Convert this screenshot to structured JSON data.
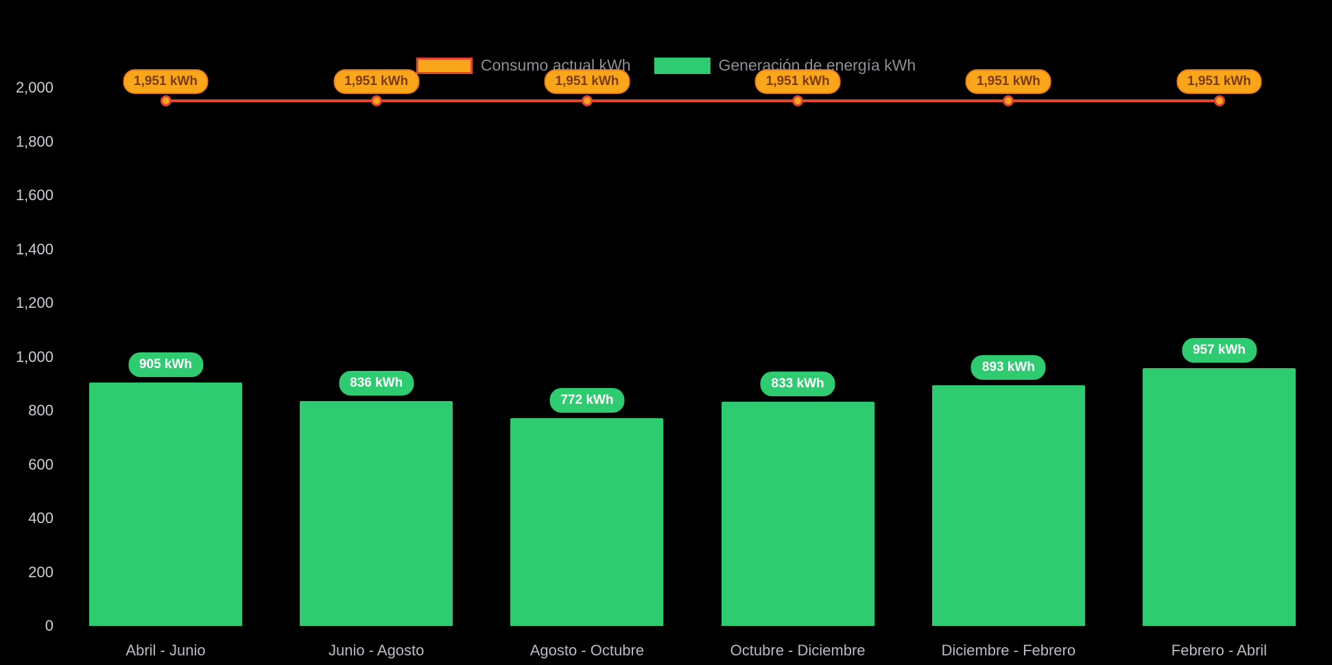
{
  "chart_data": {
    "type": "combo",
    "categories": [
      "Abril - Junio",
      "Junio - Agosto",
      "Agosto - Octubre",
      "Octubre - Diciembre",
      "Diciembre - Febrero",
      "Febrero - Abril"
    ],
    "series": [
      {
        "name": "Consumo actual kWh",
        "type": "line",
        "values": [
          1951,
          1951,
          1951,
          1951,
          1951,
          1951
        ],
        "labels": [
          "1,951 kWh",
          "1,951 kWh",
          "1,951 kWh",
          "1,951 kWh",
          "1,951 kWh",
          "1,951 kWh"
        ],
        "line_color": "#e64430",
        "marker_color": "#faa61a",
        "label_bg": "#faa61a",
        "label_text_color": "#7a3b10"
      },
      {
        "name": "Generación de energía kWh",
        "type": "bar",
        "values": [
          905,
          836,
          772,
          833,
          893,
          957
        ],
        "labels": [
          "905 kWh",
          "836 kWh",
          "772 kWh",
          "833 kWh",
          "893 kWh",
          "957 kWh"
        ],
        "color": "#2ecb70",
        "label_bg": "#2ecb70",
        "label_text_color": "#ffffff"
      }
    ],
    "title": "",
    "xlabel": "",
    "ylabel": "",
    "ylim": [
      0,
      2000
    ],
    "ytick_step": 200,
    "yticks": [
      "0",
      "200",
      "400",
      "600",
      "800",
      "1,000",
      "1,200",
      "1,400",
      "1,600",
      "1,800",
      "2,000"
    ],
    "grid": false,
    "legend_position": "top-center",
    "background": "#000000"
  },
  "colors": {
    "background": "#000000",
    "bar_green": "#2ecb70",
    "line_red": "#e64430",
    "marker_orange": "#faa61a",
    "axis_text": "#ccd1d6",
    "category_text": "#b9bdc3",
    "legend_text": "#8d9095"
  }
}
